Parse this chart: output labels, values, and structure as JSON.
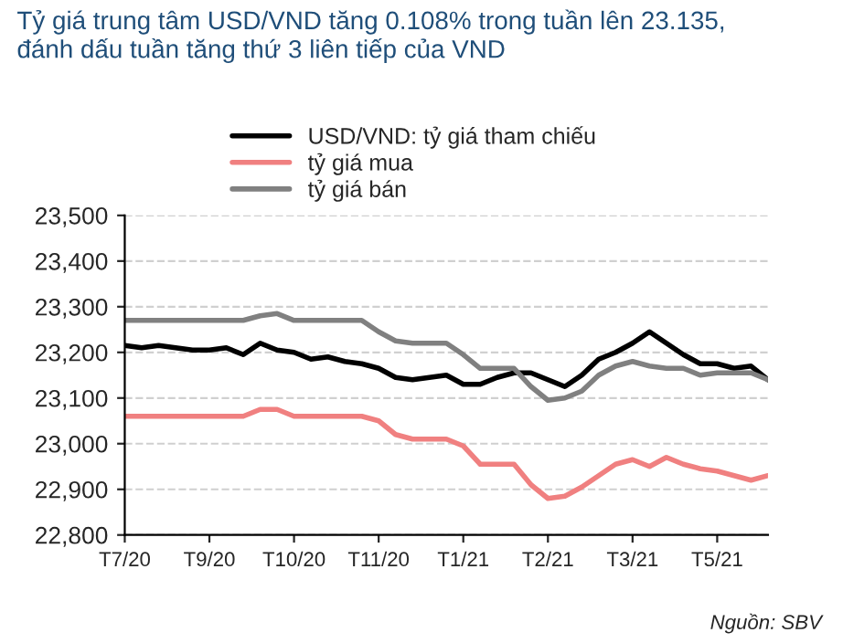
{
  "chart_data": {
    "type": "line",
    "title": "Tỷ giá trung tâm USD/VND tăng 0.108% trong tuần lên 23.135,\nđánh dấu tuần tăng thứ 3 liên tiếp của VND",
    "annotations": [
      "Nguồn: SBV"
    ],
    "categories": [
      "T7/20",
      null,
      null,
      null,
      null,
      "T9/20",
      null,
      null,
      null,
      null,
      "T10/20",
      null,
      null,
      null,
      null,
      "T11/20",
      null,
      null,
      null,
      null,
      "T1/21",
      null,
      null,
      null,
      null,
      "T2/21",
      null,
      null,
      null,
      null,
      "T3/21",
      null,
      null,
      null,
      null,
      "T5/21",
      null,
      null,
      null
    ],
    "series": [
      {
        "name": "USD/VND: tỷ giá tham chiếu",
        "color": "#000000",
        "values": [
          23215,
          23210,
          23215,
          23210,
          23205,
          23205,
          23210,
          23195,
          23220,
          23205,
          23200,
          23185,
          23190,
          23180,
          23175,
          23165,
          23145,
          23140,
          23145,
          23150,
          23130,
          23130,
          23145,
          23155,
          23155,
          23140,
          23125,
          23150,
          23185,
          23200,
          23220,
          23245,
          23220,
          23195,
          23175,
          23175,
          23165,
          23170,
          23140
        ]
      },
      {
        "name": "tỷ giá mua",
        "color": "#f08080",
        "values": [
          23060,
          23060,
          23060,
          23060,
          23060,
          23060,
          23060,
          23060,
          23075,
          23075,
          23060,
          23060,
          23060,
          23060,
          23060,
          23050,
          23020,
          23010,
          23010,
          23010,
          22995,
          22955,
          22955,
          22955,
          22910,
          22880,
          22885,
          22905,
          22930,
          22955,
          22965,
          22950,
          22970,
          22955,
          22945,
          22940,
          22930,
          22920,
          22930
        ]
      },
      {
        "name": "tỷ giá bán",
        "color": "#808080",
        "values": [
          23270,
          23270,
          23270,
          23270,
          23270,
          23270,
          23270,
          23270,
          23280,
          23285,
          23270,
          23270,
          23270,
          23270,
          23270,
          23245,
          23225,
          23220,
          23220,
          23220,
          23195,
          23165,
          23165,
          23165,
          23125,
          23095,
          23100,
          23115,
          23150,
          23170,
          23180,
          23170,
          23165,
          23165,
          23150,
          23155,
          23155,
          23155,
          23140
        ]
      }
    ],
    "ylim": [
      22800,
      23500
    ],
    "yticks": [
      {
        "value": 22800,
        "label": "22,800"
      },
      {
        "value": 22900,
        "label": "22,900"
      },
      {
        "value": 23000,
        "label": "23,000"
      },
      {
        "value": 23100,
        "label": "23,100"
      },
      {
        "value": 23200,
        "label": "23,200"
      },
      {
        "value": 23300,
        "label": "23,300"
      },
      {
        "value": 23400,
        "label": "23,400"
      },
      {
        "value": 23500,
        "label": "23,500"
      }
    ],
    "grid": "y",
    "legend": "top",
    "marker": "none",
    "line_style": "solid"
  }
}
